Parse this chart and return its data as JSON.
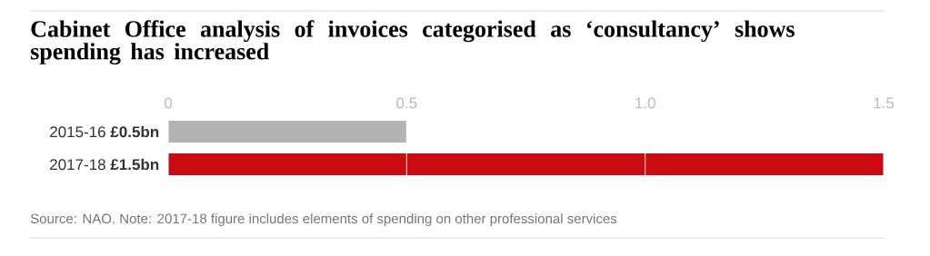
{
  "chart_data": {
    "type": "bar",
    "orientation": "horizontal",
    "title": "Cabinet Office analysis of invoices categorised as ‘consultancy’ shows spending has increased",
    "categories": [
      "2015-16 **£0.5bn**",
      "2017-18 **£1.5bn**"
    ],
    "values": [
      0.5,
      1.5
    ],
    "colors": [
      "#b3b3b3",
      "#cc0a11"
    ],
    "xlim": [
      0,
      1.5
    ],
    "xticks": [
      0,
      0.5,
      {
        "value": 1,
        "label": "1.0"
      },
      1.5
    ],
    "grid": "x",
    "annotations": [
      "Source: NAO. Note: 2017-18 figure includes elements of spending on other professional services"
    ]
  }
}
